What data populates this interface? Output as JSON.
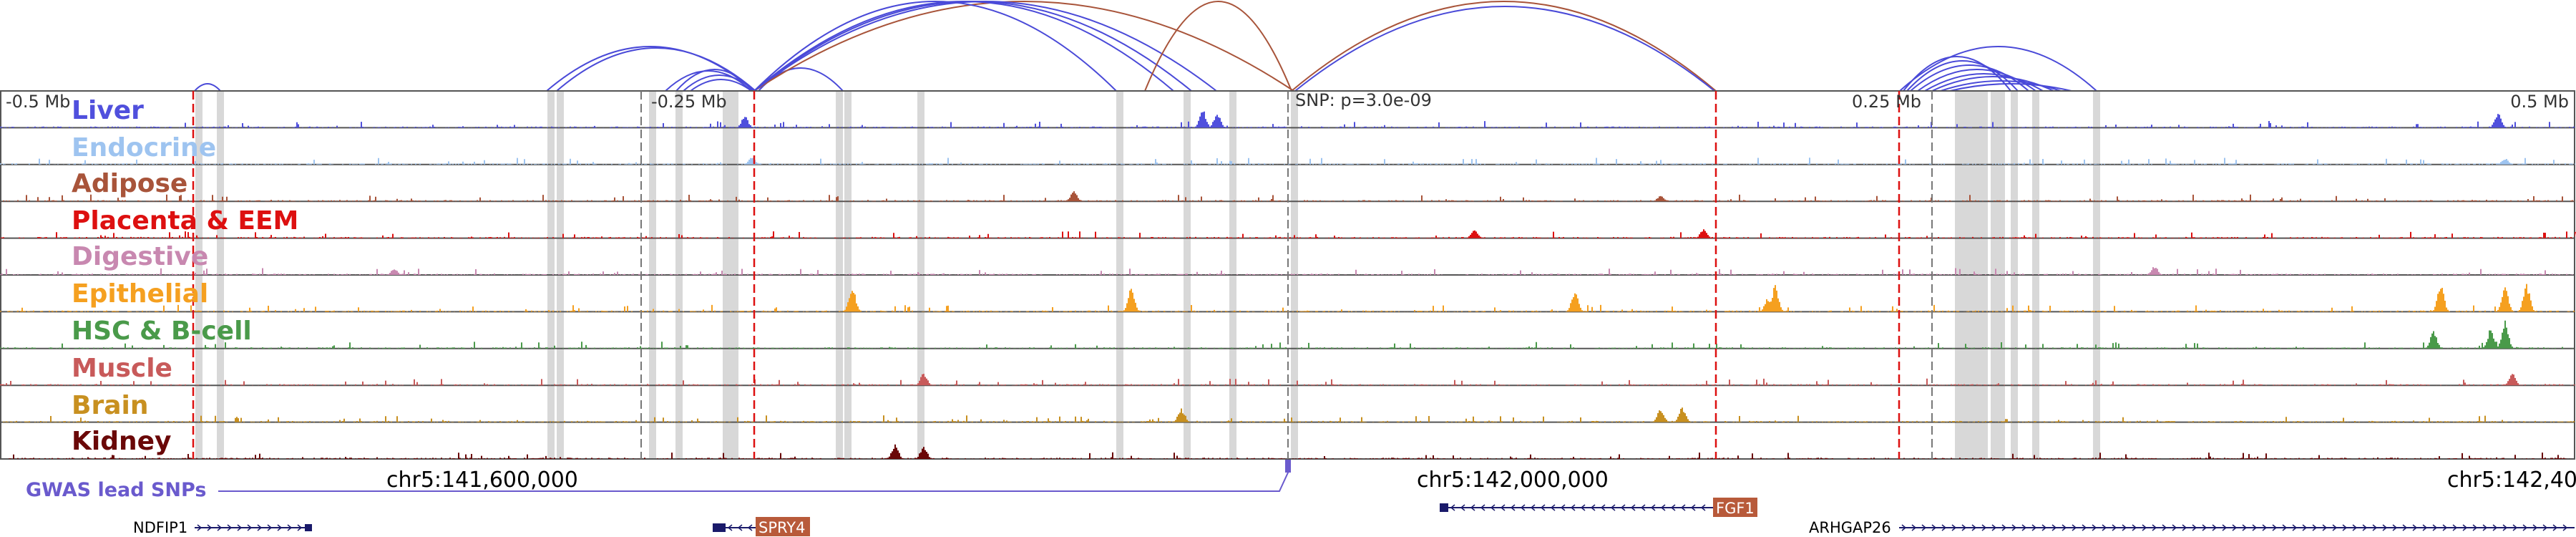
{
  "scale_labels": {
    "left": "-0.5 Mb",
    "minus_quarter": "-0.25 Mb",
    "snp": "SNP: p=3.0e-09",
    "plus_quarter": "0.25 Mb",
    "right": "0.5 Mb"
  },
  "tracks": [
    {
      "label": "Liver",
      "color": "#5050dd"
    },
    {
      "label": "Endocrine",
      "color": "#9ec4f0"
    },
    {
      "label": "Adipose",
      "color": "#a8543a"
    },
    {
      "label": "Placenta & EEM",
      "color": "#dd1010"
    },
    {
      "label": "Digestive",
      "color": "#c888b0"
    },
    {
      "label": "Epithelial",
      "color": "#f5a020"
    },
    {
      "label": "HSC & B-cell",
      "color": "#4a9a4a"
    },
    {
      "label": "Muscle",
      "color": "#c85a5a"
    },
    {
      "label": "Brain",
      "color": "#c89020"
    },
    {
      "label": "Kidney",
      "color": "#6a0808"
    }
  ],
  "gwas": {
    "label": "GWAS lead SNPs",
    "color": "#6a5acd"
  },
  "coordinates": [
    "chr5:141,600,000",
    "chr5:142,000,000",
    "chr5:142,40"
  ],
  "genes": [
    {
      "name": "NDFIP1",
      "strand": "+",
      "boxed": false
    },
    {
      "name": "SPRY4",
      "strand": "-",
      "boxed": true
    },
    {
      "name": "FGF1",
      "strand": "-",
      "boxed": true
    },
    {
      "name": "ARHGAP26",
      "strand": "+",
      "boxed": false
    }
  ],
  "colors": {
    "loop_blue": "#4a4ad8",
    "loop_brown": "#a8543a",
    "marker_red": "#dd1010",
    "gene_box": "#b85a3a",
    "gene_body": "#1a1a6a",
    "highlight": "#d8d8d8",
    "border": "#555555"
  }
}
